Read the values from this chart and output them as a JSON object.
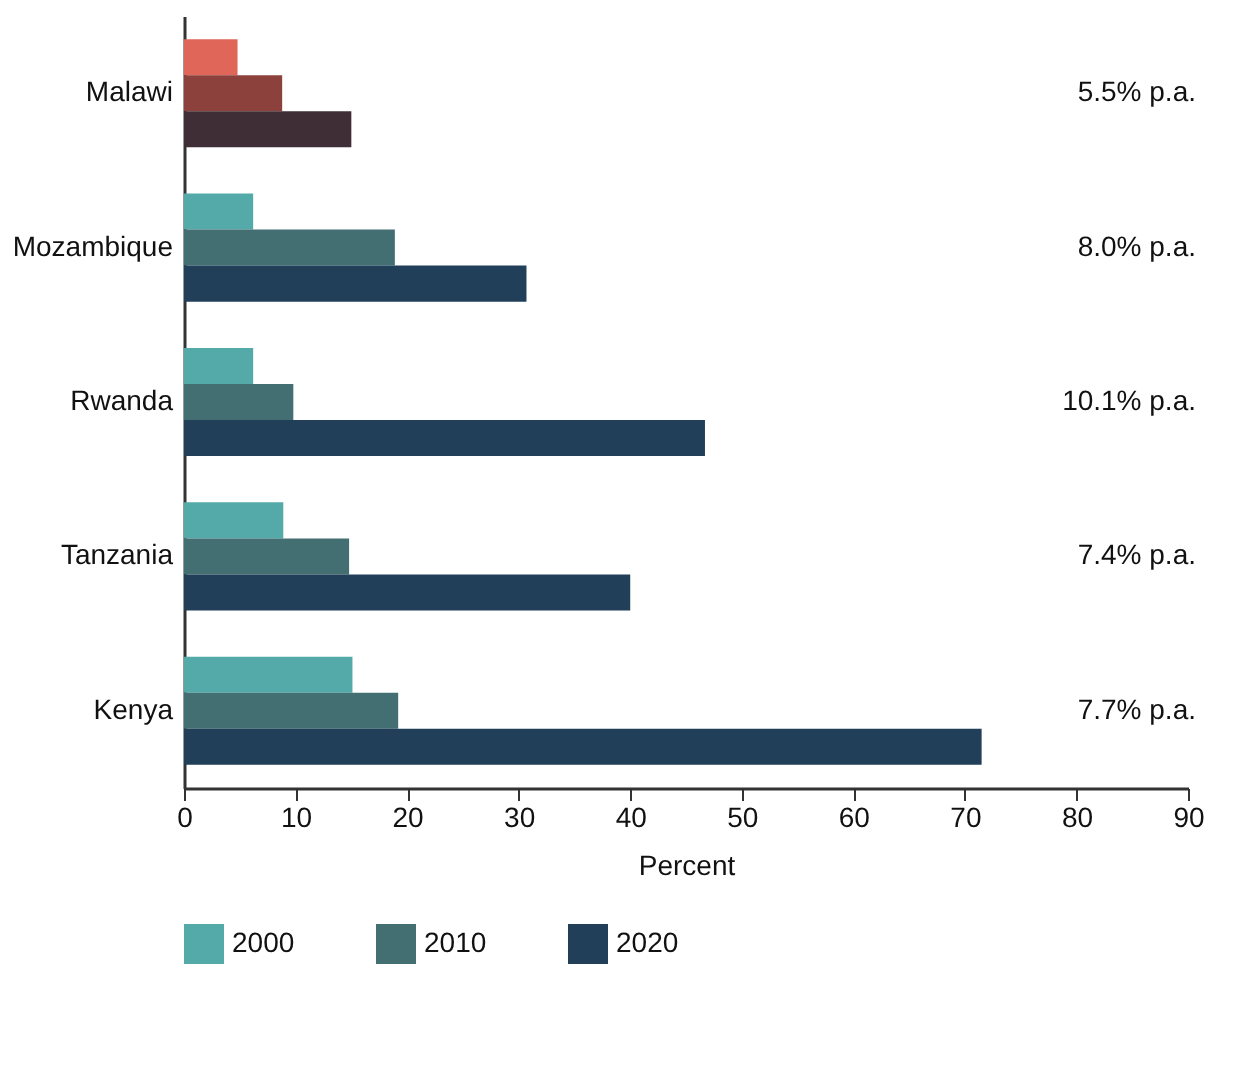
{
  "chart_data": {
    "type": "bar",
    "orientation": "horizontal",
    "xlabel": "Percent",
    "categories": [
      "Malawi",
      "Mozambique",
      "Rwanda",
      "Tanzania",
      "Kenya"
    ],
    "series": [
      {
        "name": "2000",
        "color": "#53aaa8",
        "colors": [
          "#e0665a",
          "#53aaa8",
          "#53aaa8",
          "#53aaa8",
          "#53aaa8"
        ],
        "values": [
          4.8,
          6.2,
          6.2,
          8.9,
          15.1
        ]
      },
      {
        "name": "2010",
        "color": "#436f73",
        "colors": [
          "#8d413c",
          "#436f73",
          "#436f73",
          "#436f73",
          "#436f73"
        ],
        "values": [
          8.8,
          18.9,
          9.8,
          14.8,
          19.2
        ]
      },
      {
        "name": "2020",
        "color": "#213f58",
        "colors": [
          "#3f2e36",
          "#213f58",
          "#213f58",
          "#213f58",
          "#213f58"
        ],
        "values": [
          15.0,
          30.7,
          46.7,
          40.0,
          71.5
        ]
      }
    ],
    "xlim": [
      0,
      90
    ],
    "xticks": [
      0,
      10,
      20,
      30,
      40,
      50,
      60,
      70,
      80,
      90
    ],
    "annotations": [
      "5.5% p.a.",
      "8.0% p.a.",
      "10.1% p.a.",
      "7.4% p.a.",
      "7.7% p.a."
    ],
    "grid": false,
    "legend": "bottom"
  }
}
